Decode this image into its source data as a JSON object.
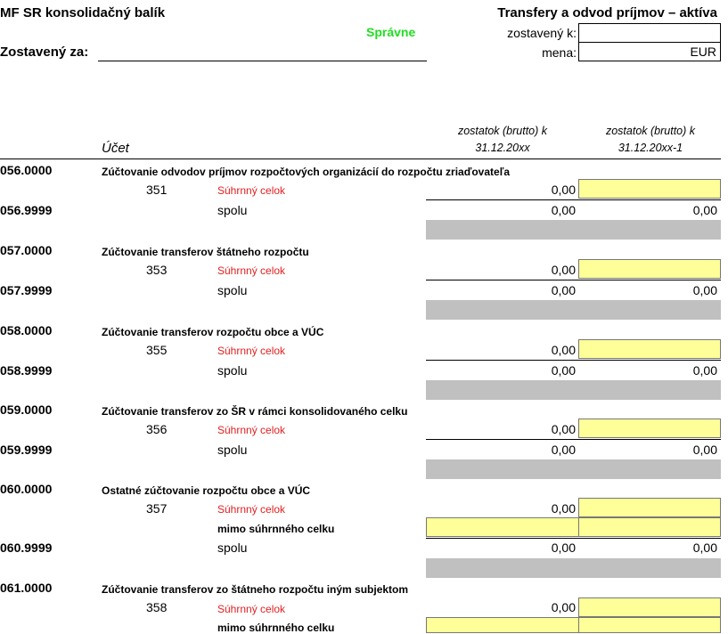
{
  "header": {
    "title_left": "MF SR konsolidačný balík",
    "status": "Správne",
    "title_right": "Transfery a odvod príjmov – aktíva",
    "compiled_for_label": "Zostavený za:",
    "compiled_as_of_label": "zostavený k:",
    "compiled_as_of_value": "",
    "currency_label": "mena:",
    "currency_value": "EUR"
  },
  "columns": {
    "account_label": "Účet",
    "col1_line1": "zostatok (brutto) k",
    "col1_line2": "31.12.20xx",
    "col2_line1": "zostatok (brutto) k",
    "col2_line2": "31.12.20xx-1"
  },
  "sections": [
    {
      "code": "056.0000",
      "title": "Zúčtovanie odvodov príjmov rozpočtových organizácií do rozpočtu zriaďovateľa",
      "account": "351",
      "account_label": "Súhrnný celok",
      "account_value": "0,00",
      "extra_label": "",
      "total_code": "056.9999",
      "total_label": "spolu",
      "total_col1": "0,00",
      "total_col2": "0,00"
    },
    {
      "code": "057.0000",
      "title": "Zúčtovanie transferov štátneho rozpočtu",
      "account": "353",
      "account_label": "Súhrnný celok",
      "account_value": "0,00",
      "extra_label": "",
      "total_code": "057.9999",
      "total_label": "spolu",
      "total_col1": "0,00",
      "total_col2": "0,00"
    },
    {
      "code": "058.0000",
      "title": "Zúčtovanie transferov rozpočtu obce a VÚC",
      "account": "355",
      "account_label": "Súhrnný celok",
      "account_value": "0,00",
      "extra_label": "",
      "total_code": "058.9999",
      "total_label": "spolu",
      "total_col1": "0,00",
      "total_col2": "0,00"
    },
    {
      "code": "059.0000",
      "title": "Zúčtovanie transferov zo ŠR v rámci konsolidovaného celku",
      "account": "356",
      "account_label": "Súhrnný celok",
      "account_value": "0,00",
      "extra_label": "",
      "total_code": "059.9999",
      "total_label": "spolu",
      "total_col1": "0,00",
      "total_col2": "0,00"
    },
    {
      "code": "060.0000",
      "title": "Ostatné zúčtovanie rozpočtu obce a VÚC",
      "account": "357",
      "account_label": "Súhrnný celok",
      "account_value": "0,00",
      "extra_label": "mimo súhrnného celku",
      "total_code": "060.9999",
      "total_label": "spolu",
      "total_col1": "0,00",
      "total_col2": "0,00"
    },
    {
      "code": "061.0000",
      "title": "Zúčtovanie transferov zo štátneho rozpočtu iným subjektom",
      "account": "358",
      "account_label": "Súhrnný celok",
      "account_value": "0,00",
      "extra_label": "mimo súhrnného celku"
    }
  ]
}
